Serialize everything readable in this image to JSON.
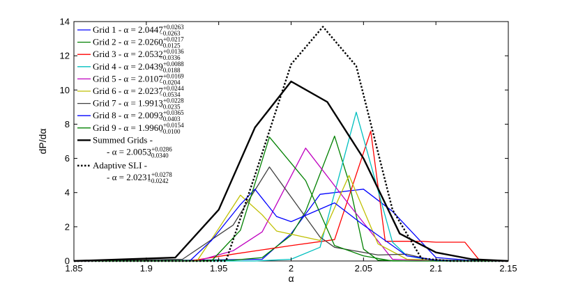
{
  "chart_data": {
    "type": "line",
    "xlabel": "α",
    "ylabel": "dP/dα",
    "xlim": [
      1.85,
      2.15
    ],
    "ylim": [
      0,
      14
    ],
    "xticks": [
      "1.85",
      "1.9",
      "1.95",
      "2",
      "2.05",
      "2.1",
      "2.15"
    ],
    "yticks": [
      "0",
      "2",
      "4",
      "6",
      "8",
      "10",
      "12",
      "14"
    ],
    "grid": false,
    "legend_position": "top-left",
    "series": [
      {
        "name": "Grid 1",
        "legend_main": "Grid 1 - α = 2.0447",
        "legend_sup": "+0.0263",
        "legend_sub": "−0.0263",
        "color": "#0000ff",
        "dash": "solid",
        "width": 1.3,
        "x": [
          1.85,
          1.935,
          1.98,
          2.0,
          2.02,
          2.05,
          2.07,
          2.1,
          2.13,
          2.15
        ],
        "y": [
          0,
          0.05,
          0.1,
          1.6,
          3.9,
          4.2,
          2.9,
          0.2,
          0,
          0
        ]
      },
      {
        "name": "Grid 2",
        "legend_main": "Grid 2 - α = 2.0260",
        "legend_sup": "+0.0217",
        "legend_sub": "−0.0125",
        "color": "#008000",
        "dash": "solid",
        "width": 1.3,
        "x": [
          1.85,
          1.96,
          1.98,
          2.0,
          2.01,
          2.03,
          2.04,
          2.05,
          2.06,
          2.08,
          2.1,
          2.15
        ],
        "y": [
          0,
          0.05,
          0.2,
          1.5,
          2.9,
          7.3,
          4.6,
          0.7,
          0.05,
          0,
          0,
          0
        ]
      },
      {
        "name": "Grid 3",
        "legend_main": "Grid 3 - α = 2.0532",
        "legend_sup": "+0.0136",
        "legend_sub": "−0.0336",
        "color": "#ff0000",
        "dash": "solid",
        "width": 1.3,
        "x": [
          1.85,
          1.93,
          1.96,
          2.0,
          2.03,
          2.055,
          2.065,
          2.09,
          2.1,
          2.12,
          2.13,
          2.15
        ],
        "y": [
          0,
          0,
          0.4,
          0.9,
          1.25,
          7.6,
          1.15,
          1.15,
          1.1,
          1.1,
          0.05,
          0
        ]
      },
      {
        "name": "Grid 4",
        "legend_main": "Grid 4 - α = 2.0439",
        "legend_sup": "+0.0088",
        "legend_sub": "−0.0188",
        "color": "#00bfbf",
        "dash": "solid",
        "width": 1.3,
        "x": [
          1.85,
          1.975,
          2.0,
          2.02,
          2.045,
          2.07,
          2.08,
          2.1,
          2.15
        ],
        "y": [
          0,
          0,
          0.1,
          0.8,
          8.7,
          1.1,
          0.3,
          0,
          0
        ]
      },
      {
        "name": "Grid 5",
        "legend_main": "Grid 5 - α = 2.0107",
        "legend_sup": "+0.0169",
        "legend_sub": "−0.0204",
        "color": "#bf00bf",
        "dash": "solid",
        "width": 1.3,
        "x": [
          1.85,
          1.935,
          1.96,
          1.98,
          2.01,
          2.04,
          2.07,
          2.1,
          2.15
        ],
        "y": [
          0,
          0,
          0.6,
          1.7,
          6.6,
          3.3,
          0.1,
          0,
          0
        ]
      },
      {
        "name": "Grid 6",
        "legend_main": "Grid 6 - α = 2.0237",
        "legend_sup": "+0.0244",
        "legend_sub": "−0.0534",
        "color": "#bfbf00",
        "dash": "solid",
        "width": 1.3,
        "x": [
          1.85,
          1.935,
          1.95,
          1.965,
          1.98,
          1.99,
          2.02,
          2.04,
          2.06,
          2.08,
          2.15
        ],
        "y": [
          0,
          0,
          1.9,
          3.85,
          2.7,
          1.75,
          1.2,
          5.0,
          1.0,
          0.1,
          0
        ]
      },
      {
        "name": "Grid 7",
        "legend_main": "Grid 7 - α = 1.9913",
        "legend_sup": "+0.0228",
        "legend_sub": "−0.0235",
        "color": "#404040",
        "dash": "solid",
        "width": 1.3,
        "x": [
          1.85,
          1.925,
          1.96,
          1.985,
          2.02,
          2.03,
          2.06,
          2.08,
          2.1,
          2.15
        ],
        "y": [
          0,
          0.1,
          2.1,
          5.5,
          1.4,
          0.8,
          0.35,
          0.4,
          0,
          0
        ]
      },
      {
        "name": "Grid 8",
        "legend_main": "Grid 8 - α = 2.0093",
        "legend_sup": "+0.0365",
        "legend_sub": "−0.0403",
        "color": "#0000ff",
        "dash": "solid",
        "width": 1.3,
        "x": [
          1.85,
          1.93,
          1.945,
          1.965,
          1.975,
          1.99,
          2.0,
          2.03,
          2.05,
          2.08,
          2.1,
          2.15
        ],
        "y": [
          0,
          0,
          1.2,
          3.3,
          4.2,
          2.6,
          2.3,
          3.4,
          2.1,
          0.3,
          0.05,
          0
        ]
      },
      {
        "name": "Grid 9",
        "legend_main": "Grid 9 - α = 1.9960",
        "legend_sup": "+0.0154",
        "legend_sub": "−0.0100",
        "color": "#008000",
        "dash": "solid",
        "width": 1.3,
        "x": [
          1.85,
          1.945,
          1.965,
          1.985,
          2.01,
          2.03,
          2.05,
          2.07,
          2.15
        ],
        "y": [
          0,
          0,
          1.8,
          7.25,
          4.7,
          0.9,
          0.3,
          0,
          0
        ]
      },
      {
        "name": "Summed Grids",
        "legend_main": "Summed Grids -",
        "legend_line2": "- α = 2.0053",
        "legend_sup": "+0.0286",
        "legend_sub": "−0.0340",
        "color": "#000000",
        "dash": "solid",
        "width": 2.4,
        "x": [
          1.85,
          1.92,
          1.95,
          1.975,
          2.0,
          2.025,
          2.05,
          2.075,
          2.1,
          2.125,
          2.15
        ],
        "y": [
          0,
          0.2,
          3.0,
          7.8,
          10.5,
          9.3,
          6.0,
          1.6,
          0.5,
          0.1,
          0
        ]
      },
      {
        "name": "Adaptive SLI",
        "legend_main": "Adaptive SLI -",
        "legend_line2": "- α = 2.0231",
        "legend_sup": "+0.0278",
        "legend_sub": "−0.0242",
        "color": "#000000",
        "dash": "dotted",
        "width": 2.4,
        "x": [
          1.85,
          1.955,
          1.975,
          2.0,
          2.022,
          2.045,
          2.07,
          2.09,
          2.11,
          2.15
        ],
        "y": [
          0,
          0,
          5.0,
          11.5,
          13.7,
          11.4,
          3.0,
          0.15,
          0,
          0
        ]
      }
    ]
  }
}
